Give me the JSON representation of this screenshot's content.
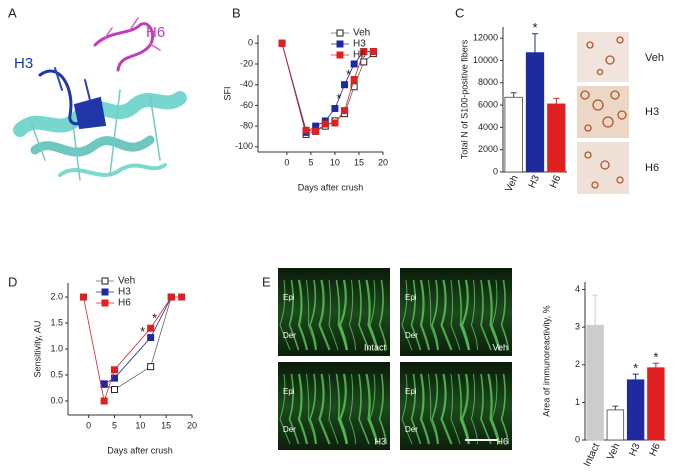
{
  "figure": {
    "panel_letters": [
      "A",
      "B",
      "C",
      "D",
      "E"
    ],
    "structure_labels": [
      "H3",
      "H6"
    ],
    "c_images": [
      "Veh",
      "H3",
      "H6"
    ],
    "e_images": [
      [
        "Epi",
        "Der",
        "Intact"
      ],
      [
        "Epi",
        "Der",
        "Veh"
      ],
      [
        "Epi",
        "Der",
        "H3"
      ],
      [
        "Epi",
        "Der",
        "H6"
      ]
    ]
  },
  "chart_data": [
    {
      "type": "line",
      "xlabel": "Days after crush",
      "ylabel": "SFI",
      "x": [
        -1,
        4,
        6,
        8,
        10,
        12,
        14,
        16,
        18
      ],
      "xlim": [
        -6,
        20
      ],
      "xticks": [
        0,
        5,
        10,
        15,
        20
      ],
      "ylim": [
        -105,
        8
      ],
      "yticks": [
        0,
        -20,
        -40,
        -60,
        -80,
        -100
      ],
      "legend": "upper right",
      "series": [
        {
          "name": "Veh",
          "color": "#666666",
          "marker": "open-square",
          "values": [
            0,
            -88,
            -85,
            -80,
            -75,
            -68,
            -42,
            -18,
            -10
          ]
        },
        {
          "name": "H3",
          "color": "#1f2a9e",
          "marker": "square",
          "values": [
            0,
            -86,
            -80,
            -75,
            -63,
            -40,
            -20,
            -8,
            -8
          ]
        },
        {
          "name": "H6",
          "color": "#e02020",
          "marker": "square",
          "values": [
            0,
            -84,
            -85,
            -78,
            -77,
            -65,
            -35,
            -8,
            -8
          ]
        }
      ],
      "annotations": [
        {
          "text": "*",
          "x": 10
        },
        {
          "text": "*",
          "x": 12
        }
      ]
    },
    {
      "type": "bar",
      "ylabel": "Total N of S100-positive fibers",
      "categories": [
        "Veh",
        "H3",
        "H6"
      ],
      "values": [
        6700,
        10700,
        6100
      ],
      "errors": [
        400,
        1700,
        500
      ],
      "colors": [
        "#ffffff",
        "#1f2a9e",
        "#e02020"
      ],
      "ylim": [
        0,
        13000
      ],
      "yticks": [
        0,
        2000,
        4000,
        6000,
        8000,
        10000,
        12000
      ],
      "value_annotations": [
        null,
        "*",
        null
      ]
    },
    {
      "type": "line",
      "xlabel": "Days after crush",
      "ylabel": "Sensitivity, AU",
      "x": [
        -1,
        3,
        5,
        12,
        16,
        18
      ],
      "xlim": [
        -4,
        20
      ],
      "xticks": [
        0,
        5,
        10,
        15,
        20
      ],
      "ylim": [
        -0.27,
        2.27
      ],
      "yticks": [
        {
          "value": 0,
          "label": "0.0"
        },
        0.5,
        {
          "value": 1,
          "label": "1.0"
        },
        1.5,
        {
          "value": 2,
          "label": "2.0"
        }
      ],
      "legend": "upper left",
      "series": [
        {
          "name": "Veh",
          "color": "#666666",
          "marker": "open-square",
          "values": [
            null,
            0.32,
            0.22,
            0.66,
            2.0,
            null
          ]
        },
        {
          "name": "H3",
          "color": "#1f2a9e",
          "marker": "square",
          "values": [
            null,
            0.33,
            0.44,
            1.22,
            2.0,
            null
          ]
        },
        {
          "name": "H6",
          "color": "#e02020",
          "marker": "square",
          "values": [
            2.0,
            0.0,
            0.6,
            1.4,
            2.0,
            2.0
          ]
        }
      ],
      "annotations": [
        {
          "text": "*",
          "x": 12
        },
        {
          "text": "*",
          "x": 12
        }
      ]
    },
    {
      "type": "bar",
      "ylabel": "Area of immunoreactivity, %",
      "categories": [
        "Intact",
        "Veh",
        "H3",
        "H6"
      ],
      "values": [
        3.05,
        0.8,
        1.6,
        1.92
      ],
      "errors": [
        0.8,
        0.1,
        0.15,
        0.12
      ],
      "colors": [
        "#cccccc",
        "#ffffff",
        "#1f2a9e",
        "#e02020"
      ],
      "ylim": [
        0,
        4.2
      ],
      "yticks": [
        0,
        1,
        2,
        3,
        4
      ],
      "value_annotations": [
        null,
        null,
        "*",
        "*"
      ]
    }
  ]
}
